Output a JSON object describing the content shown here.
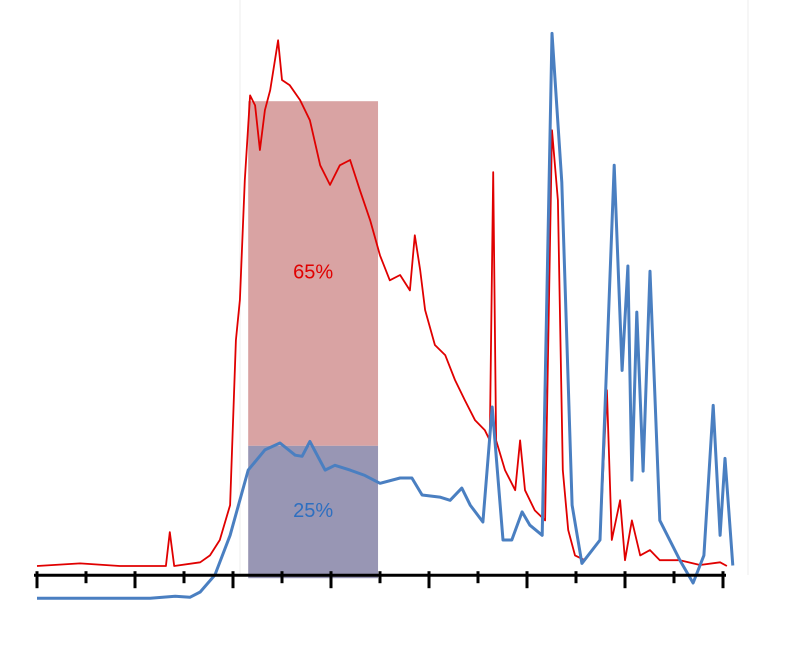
{
  "chart_data": {
    "type": "line",
    "xlim": [
      0,
      14.4
    ],
    "ylim": [
      -6,
      104
    ],
    "xticks": [
      0,
      1,
      2,
      3,
      4,
      5,
      6,
      7,
      8,
      9,
      10,
      11,
      12,
      13,
      14
    ],
    "stack": {
      "x": [
        4.31,
        6.96
      ],
      "values": [
        25,
        65
      ],
      "value_labels": [
        "25%",
        "65%"
      ],
      "colors": [
        "#9896b4",
        "#d9a3a3"
      ],
      "label_colors": [
        "#2e6fc0",
        "#e00000"
      ]
    },
    "series": [
      {
        "color": "#e00000",
        "x": [
          0,
          0.88,
          1.69,
          2.63,
          2.71,
          2.8,
          3.33,
          3.53,
          3.73,
          3.94,
          4.06,
          4.14,
          4.24,
          4.35,
          4.45,
          4.55,
          4.65,
          4.76,
          4.92,
          5.0,
          5.16,
          5.37,
          5.57,
          5.78,
          5.98,
          6.18,
          6.39,
          6.59,
          6.8,
          7.0,
          7.2,
          7.41,
          7.61,
          7.71,
          7.82,
          7.92,
          8.12,
          8.33,
          8.53,
          8.73,
          8.94,
          9.14,
          9.24,
          9.31,
          9.37,
          9.55,
          9.76,
          9.86,
          9.96,
          10.16,
          10.37,
          10.51,
          10.63,
          10.73,
          10.84,
          10.98,
          11.18,
          11.49,
          11.63,
          11.73,
          11.9,
          12.0,
          12.14,
          12.31,
          12.51,
          12.71,
          13.12,
          13.53,
          13.94,
          14.08
        ],
        "values": [
          2.3,
          2.8,
          2.3,
          2.3,
          8.7,
          2.3,
          3.0,
          4.3,
          7.2,
          13.8,
          44.9,
          52.5,
          75.1,
          91.1,
          89.2,
          80.8,
          88.3,
          92.1,
          101.5,
          94.0,
          93.0,
          90.2,
          86.4,
          77.9,
          74.2,
          77.9,
          78.9,
          73.2,
          67.5,
          60.9,
          56.2,
          57.2,
          54.3,
          64.7,
          58.1,
          50.6,
          44.0,
          42.1,
          37.4,
          33.6,
          29.8,
          27.9,
          26.0,
          76.6,
          26.0,
          20.4,
          16.6,
          26.0,
          16.6,
          12.8,
          10.9,
          84.5,
          71.3,
          20.4,
          9.1,
          4.3,
          3.4,
          7.2,
          35.5,
          7.2,
          14.7,
          3.4,
          10.9,
          4.3,
          5.3,
          3.4,
          3.4,
          2.5,
          3.0,
          2.3
        ]
      },
      {
        "color": "#4a7fc1",
        "x": [
          0,
          1.29,
          2.31,
          2.82,
          3.12,
          3.33,
          3.63,
          3.94,
          4.31,
          4.65,
          4.96,
          5.27,
          5.41,
          5.57,
          5.88,
          6.08,
          6.39,
          6.69,
          7.0,
          7.41,
          7.65,
          7.86,
          8.22,
          8.43,
          8.67,
          8.84,
          9.1,
          9.29,
          9.51,
          9.69,
          9.9,
          10.06,
          10.31,
          10.51,
          10.71,
          10.92,
          11.12,
          11.49,
          11.78,
          11.94,
          12.06,
          12.14,
          12.24,
          12.37,
          12.51,
          12.71,
          13.12,
          13.39,
          13.61,
          13.8,
          13.94,
          14.04,
          14.2
        ],
        "values": [
          -3.8,
          -3.8,
          -3.8,
          -3.4,
          -3.6,
          -2.6,
          0.6,
          8.1,
          20.4,
          24.2,
          25.5,
          23.2,
          23.0,
          25.8,
          20.4,
          21.3,
          20.4,
          19.4,
          17.9,
          18.9,
          18.9,
          15.7,
          15.3,
          14.7,
          17.0,
          13.8,
          10.6,
          32.3,
          7.2,
          7.2,
          12.5,
          10.0,
          8.1,
          102.8,
          74.7,
          13.8,
          2.8,
          7.2,
          77.9,
          39.2,
          58.9,
          18.5,
          50.2,
          20.2,
          57.9,
          10.9,
          3.4,
          -0.9,
          4.3,
          32.6,
          8.1,
          22.6,
          2.4
        ]
      }
    ]
  }
}
